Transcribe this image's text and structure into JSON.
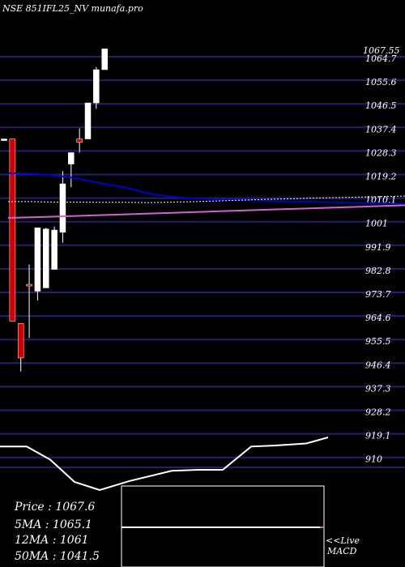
{
  "chart_data": {
    "type": "candlestick",
    "title": "NSE 851IFL25_NV munafa.pro",
    "yticks": [
      "1064.7",
      "1055.6",
      "1046.5",
      "1037.4",
      "1028.3",
      "1019.2",
      "1010.1",
      "1001",
      "991.9",
      "982.8",
      "973.7",
      "964.6",
      "955.5",
      "946.4",
      "937.3",
      "928.2",
      "919.1",
      "910"
    ],
    "last_price_label": "1067.55",
    "ylim": [
      903.2,
      1071.1
    ],
    "candles": [
      {
        "open": 1035.5,
        "high": 1035.5,
        "low": 1035.5,
        "close": 1035.5,
        "color": "white"
      },
      {
        "open": 1035.5,
        "high": 1035.5,
        "low": 963.7,
        "close": 963.7,
        "color": "red"
      },
      {
        "open": 962.8,
        "high": 962.8,
        "low": 943.8,
        "close": 949.2,
        "color": "red"
      },
      {
        "open": 978.2,
        "high": 986.0,
        "low": 957.1,
        "close": 978.2,
        "color": "red"
      },
      {
        "open": 975.5,
        "high": 1000.5,
        "low": 971.8,
        "close": 1000.5,
        "color": "white"
      },
      {
        "open": 976.8,
        "high": 1000.5,
        "low": 976.8,
        "close": 1000.0,
        "color": "white"
      },
      {
        "open": 984.1,
        "high": 1001.0,
        "low": 984.1,
        "close": 999.6,
        "color": "white"
      },
      {
        "open": 998.7,
        "high": 1022.8,
        "low": 994.6,
        "close": 1017.8,
        "color": "white"
      },
      {
        "open": 1025.6,
        "high": 1029.2,
        "low": 1016.5,
        "close": 1030.1,
        "color": "white"
      },
      {
        "open": 1034.2,
        "high": 1039.7,
        "low": 1030.1,
        "close": 1035.5,
        "color": "red"
      },
      {
        "open": 1035.5,
        "high": 1049.2,
        "low": 1035.5,
        "close": 1049.7,
        "color": "white"
      },
      {
        "open": 1049.7,
        "high": 1063.8,
        "low": 1047.4,
        "close": 1062.8,
        "color": "white"
      },
      {
        "open": 1062.8,
        "high": 1071.0,
        "low": 1062.8,
        "close": 1071.0,
        "color": "white"
      }
    ],
    "moving_averages": {
      "ma_line": [
        1022.0,
        1021.8,
        1021.2,
        1019.8,
        1018.0,
        1016.4,
        1014.0,
        1012.7,
        1012.0,
        1011.6,
        1011.4,
        1011.2,
        1010.9,
        1010.7,
        1010.5,
        1010.3,
        1010.1,
        1009.9
      ],
      "ma_purple": [
        1004.4,
        1004.6,
        1004.9,
        1005.2,
        1005.5,
        1005.8,
        1006.1,
        1006.4,
        1006.7,
        1007.0,
        1007.3,
        1007.6,
        1007.9,
        1008.2,
        1008.5,
        1008.8,
        1009.1,
        1009.4
      ],
      "ma_dotted": [
        1010.8,
        1010.8,
        1010.6,
        1010.6,
        1010.5,
        1010.5,
        1010.4,
        1010.6,
        1010.8,
        1011.1,
        1011.4,
        1011.7,
        1011.9,
        1012.2,
        1012.4,
        1012.6,
        1012.8,
        1013.0
      ]
    },
    "volume_line": [
      55,
      55,
      42,
      20,
      12,
      21,
      31,
      32,
      32,
      55,
      56,
      58,
      64,
      70,
      80,
      89,
      95
    ],
    "info": {
      "price": "Price   : 1067.6",
      "ma5": "5MA : 1065.1",
      "ma12": "12MA : 1061",
      "ma50": "50MA : 1041.5"
    },
    "macd": {
      "label1": "<<Live",
      "label2": "MACD"
    },
    "colors": {
      "bull": "#ffffff",
      "bear": "#cc0000",
      "grid": "#222266",
      "purple": "#cc66cc",
      "blue": "#0000cc"
    }
  }
}
